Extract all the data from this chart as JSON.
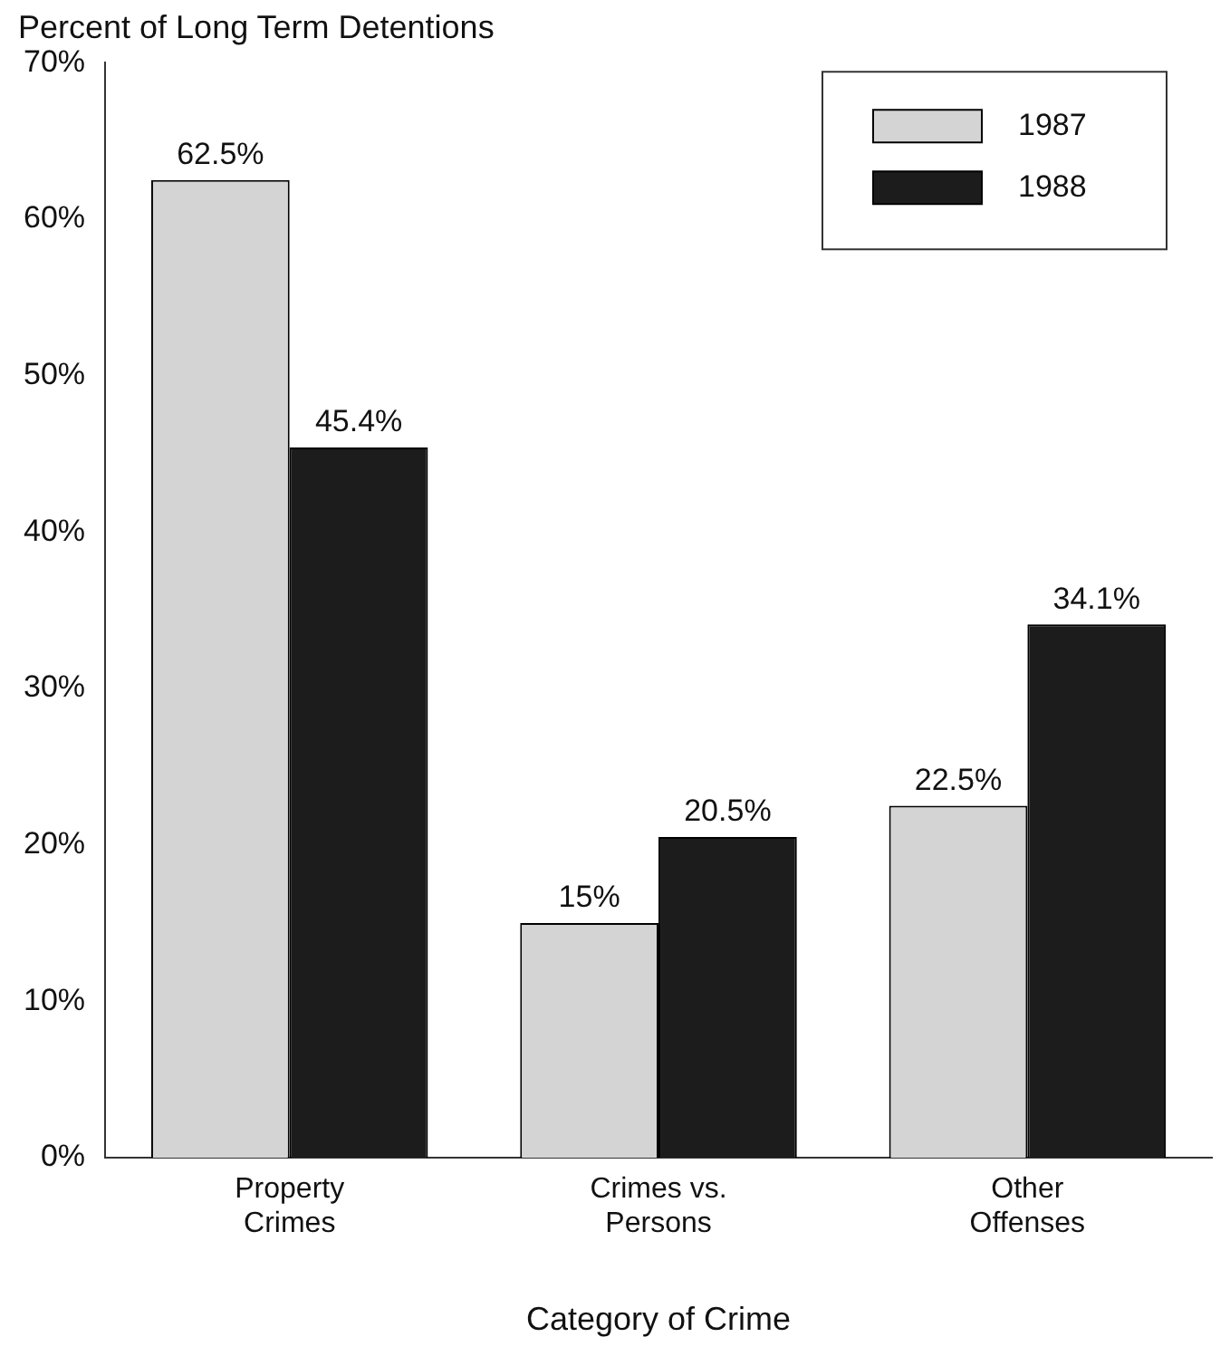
{
  "chart_data": {
    "type": "bar",
    "title": "Percent of Long Term Detentions",
    "xlabel": "Category of Crime",
    "categories": [
      "Property Crimes",
      "Crimes vs. Persons",
      "Other Offenses"
    ],
    "series": [
      {
        "name": "1987",
        "color": "#d4d4d4",
        "values": [
          62.5,
          15,
          22.5
        ],
        "value_labels": [
          "62.5%",
          "15%",
          "22.5%"
        ]
      },
      {
        "name": "1988",
        "color": "#1c1c1c",
        "values": [
          45.4,
          20.5,
          34.1
        ],
        "value_labels": [
          "45.4%",
          "20.5%",
          "34.1%"
        ]
      }
    ],
    "ylim": [
      0,
      70
    ],
    "yticks": [
      {
        "value": 0,
        "label": "0%"
      },
      {
        "value": 10,
        "label": "10%"
      },
      {
        "value": 20,
        "label": "20%"
      },
      {
        "value": 30,
        "label": "30%"
      },
      {
        "value": 40,
        "label": "40%"
      },
      {
        "value": 50,
        "label": "50%"
      },
      {
        "value": 60,
        "label": "60%"
      },
      {
        "value": 70,
        "label": "70%"
      }
    ],
    "grid": false,
    "legend": "top right"
  }
}
